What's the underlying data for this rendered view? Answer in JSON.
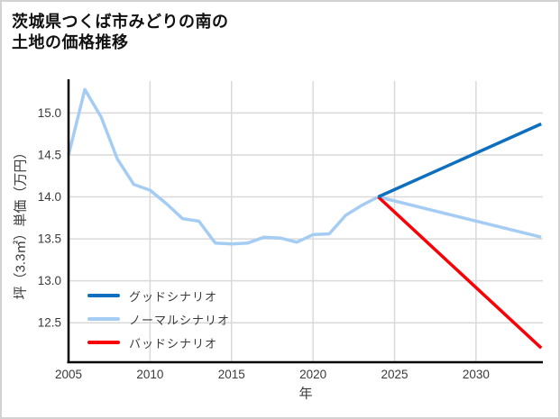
{
  "title": "茨城県つくば市みどりの南の\n土地の価格推移",
  "chart_data": {
    "type": "line",
    "title": "茨城県つくば市みどりの南の土地の価格推移",
    "xlabel": "年",
    "ylabel": "坪（3.3㎡）単価（万円）",
    "xlim": [
      2005,
      2034.1
    ],
    "ylim": [
      12.03,
      15.38
    ],
    "xticks": [
      2005,
      2010,
      2015,
      2020,
      2025,
      2030
    ],
    "yticks": [
      12.5,
      13.0,
      13.5,
      14.0,
      14.5,
      15.0
    ],
    "grid": true,
    "legend_position": "lower-left",
    "colors": {
      "grid": "#d9d9d9",
      "axis": "#000000",
      "tick_text": "#3a3a3a",
      "title_text": "#111111"
    },
    "series": [
      {
        "id": "historical",
        "name": "",
        "color": "#a5cdf4",
        "x": [
          2005,
          2006,
          2007,
          2008,
          2009,
          2010,
          2011,
          2012,
          2013,
          2014,
          2015,
          2016,
          2017,
          2018,
          2019,
          2020,
          2021,
          2022,
          2023,
          2024
        ],
        "values": [
          14.5,
          15.28,
          14.95,
          14.45,
          14.15,
          14.08,
          13.92,
          13.74,
          13.71,
          13.45,
          13.44,
          13.45,
          13.52,
          13.51,
          13.46,
          13.55,
          13.56,
          13.78,
          13.9,
          14.0
        ]
      },
      {
        "id": "good",
        "name": "グッドシナリオ",
        "color": "#0e6fbe",
        "x": [
          2024,
          2034
        ],
        "values": [
          14.0,
          14.87
        ]
      },
      {
        "id": "normal",
        "name": "ノーマルシナリオ",
        "color": "#a5cdf4",
        "x": [
          2024,
          2034
        ],
        "values": [
          14.0,
          13.52
        ]
      },
      {
        "id": "bad",
        "name": "バッドシナリオ",
        "color": "#f80006",
        "x": [
          2024,
          2034
        ],
        "values": [
          14.0,
          12.2
        ]
      }
    ],
    "legend": [
      {
        "series_index": 1
      },
      {
        "series_index": 2
      },
      {
        "series_index": 3
      }
    ]
  }
}
